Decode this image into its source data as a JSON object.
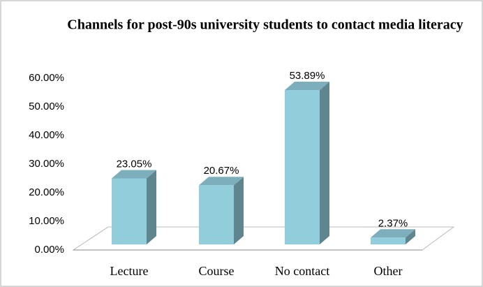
{
  "chart_data": {
    "type": "bar",
    "title": "Channels for post-90s university students to contact media literacy",
    "categories": [
      "Lecture",
      "Course",
      "No contact",
      "Other"
    ],
    "values": [
      23.05,
      20.67,
      53.89,
      2.37
    ],
    "value_labels": [
      "23.05%",
      "20.67%",
      "53.89%",
      "2.37%"
    ],
    "color": "#92cddc",
    "ylim": [
      0,
      60
    ],
    "yticks": [
      {
        "value": 0,
        "label": "0.00%"
      },
      {
        "value": 10,
        "label": "10.00%"
      },
      {
        "value": 20,
        "label": "20.00%"
      },
      {
        "value": 30,
        "label": "30.00%"
      },
      {
        "value": 40,
        "label": "40.00%"
      },
      {
        "value": 50,
        "label": "50.00%"
      },
      {
        "value": 60,
        "label": "60.00%"
      }
    ]
  }
}
